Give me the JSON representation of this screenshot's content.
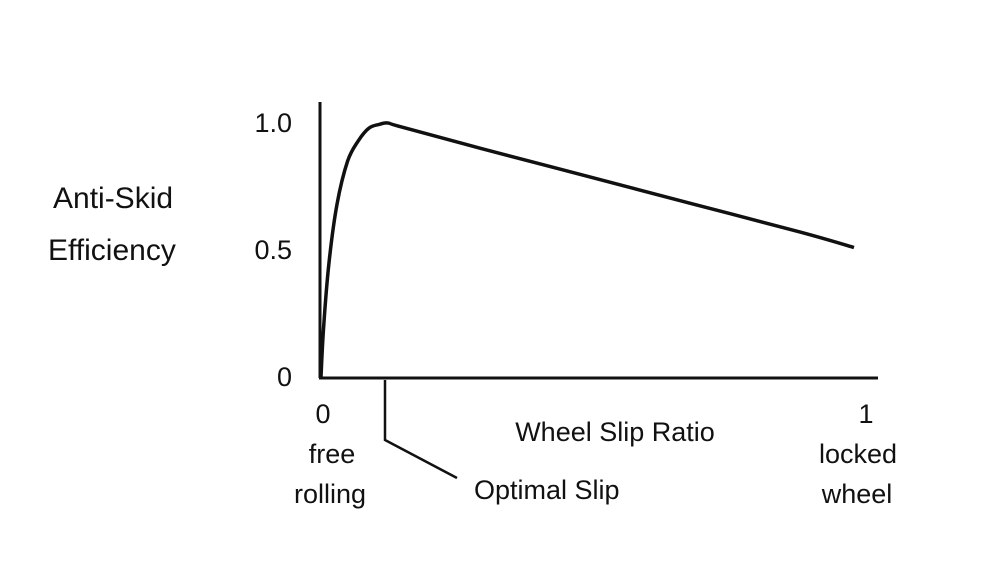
{
  "chart_data": {
    "type": "line",
    "title": "",
    "ylabel_lines": [
      "Anti-Skid",
      "Efficiency"
    ],
    "xlabel": "Wheel Slip Ratio",
    "xlim": [
      0,
      1
    ],
    "ylim": [
      0,
      1.0
    ],
    "grid": false,
    "y_ticks": [
      {
        "value": 0,
        "label": "0"
      },
      {
        "value": 0.5,
        "label": "0.5"
      },
      {
        "value": 1.0,
        "label": "1.0"
      }
    ],
    "x_ticks": [
      {
        "value": 0,
        "label": "0",
        "sub": [
          "free",
          "rolling"
        ]
      },
      {
        "value": 1,
        "label": "1",
        "sub": [
          "locked",
          "wheel"
        ]
      }
    ],
    "annotation": {
      "text": "Optimal Slip",
      "x": 0.12
    },
    "series": [
      {
        "x": [
          0,
          0.005,
          0.015,
          0.03,
          0.05,
          0.07,
          0.09,
          0.11,
          0.125,
          0.15,
          0.3,
          0.5,
          0.7,
          0.9,
          1.0
        ],
        "y": [
          0,
          0.2,
          0.45,
          0.68,
          0.85,
          0.93,
          0.98,
          0.995,
          1.0,
          0.985,
          0.9,
          0.79,
          0.68,
          0.57,
          0.51
        ]
      }
    ]
  }
}
